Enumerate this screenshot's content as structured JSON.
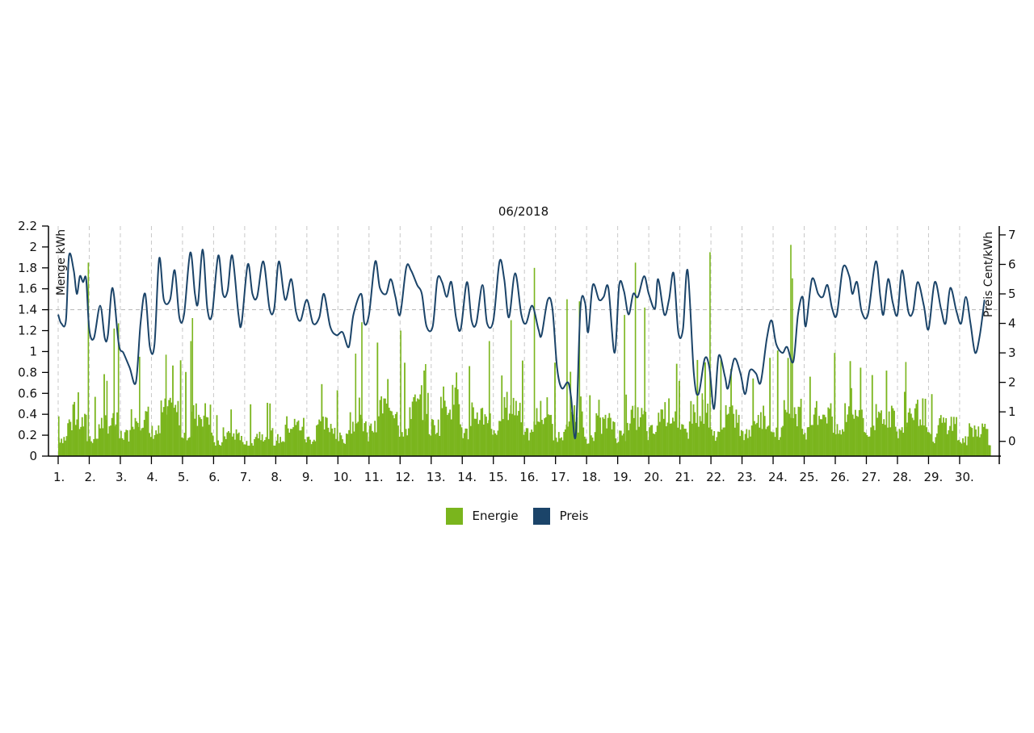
{
  "chart_data": {
    "type": "bar+line",
    "title": "06/2018",
    "y_left_label": "Menge kWh",
    "y_right_label": "Preis Cent/kWh",
    "y_left_ticks": [
      "0",
      "0.2",
      "0.4",
      "0.6",
      "0.8",
      "1",
      "1.2",
      "1.4",
      "1.6",
      "1.8",
      "2",
      "2.2"
    ],
    "y_left_range": [
      0,
      2.2
    ],
    "y_right_ticks": [
      "0",
      "1",
      "2",
      "3",
      "4",
      "5",
      "6",
      "7"
    ],
    "y_right_range": [
      -0.5,
      7.3
    ],
    "reference_line_left": 1.4,
    "x_ticks": [
      "1.",
      "2.",
      "3.",
      "4.",
      "5.",
      "6.",
      "7.",
      "8.",
      "9.",
      "10.",
      "11.",
      "12.",
      "13.",
      "14.",
      "15.",
      "16.",
      "17.",
      "18.",
      "19.",
      "20.",
      "21.",
      "22.",
      "23.",
      "24.",
      "25.",
      "26.",
      "27.",
      "28.",
      "29.",
      "30."
    ],
    "x_range_days": [
      1,
      31
    ],
    "resolution": "hourly",
    "series": [
      {
        "name": "Energie",
        "color": "#7ab51d",
        "kind": "bar",
        "axis": "left",
        "daily_base": [
          0.3,
          0.3,
          0.35,
          0.4,
          0.38,
          0.2,
          0.2,
          0.28,
          0.28,
          0.3,
          0.45,
          0.45,
          0.5,
          0.38,
          0.45,
          0.35,
          0.32,
          0.3,
          0.35,
          0.4,
          0.4,
          0.35,
          0.35,
          0.4,
          0.4,
          0.4,
          0.38,
          0.4,
          0.3,
          0.25
        ],
        "highlights": [
          {
            "day_pos": 1.0,
            "value": 0.38
          },
          {
            "day_pos": 1.95,
            "value": 1.85
          },
          {
            "day_pos": 2.55,
            "value": 0.72
          },
          {
            "day_pos": 2.78,
            "value": 1.22
          },
          {
            "day_pos": 2.92,
            "value": 1.27
          },
          {
            "day_pos": 3.6,
            "value": 0.95
          },
          {
            "day_pos": 4.45,
            "value": 0.97
          },
          {
            "day_pos": 5.25,
            "value": 1.1
          },
          {
            "day_pos": 5.3,
            "value": 1.32
          },
          {
            "day_pos": 10.75,
            "value": 1.28
          },
          {
            "day_pos": 10.55,
            "value": 0.98
          },
          {
            "day_pos": 12.0,
            "value": 1.2
          },
          {
            "day_pos": 12.8,
            "value": 0.88
          },
          {
            "day_pos": 14.85,
            "value": 1.1
          },
          {
            "day_pos": 15.55,
            "value": 1.3
          },
          {
            "day_pos": 16.3,
            "value": 1.8
          },
          {
            "day_pos": 17.35,
            "value": 1.5
          },
          {
            "day_pos": 17.75,
            "value": 1.48
          },
          {
            "day_pos": 19.2,
            "value": 1.35
          },
          {
            "day_pos": 19.55,
            "value": 1.85
          },
          {
            "day_pos": 19.85,
            "value": 1.42
          },
          {
            "day_pos": 21.7,
            "value": 0.6
          },
          {
            "day_pos": 21.95,
            "value": 1.95
          },
          {
            "day_pos": 22.3,
            "value": 0.92
          },
          {
            "day_pos": 24.55,
            "value": 2.02
          },
          {
            "day_pos": 24.6,
            "value": 1.7
          },
          {
            "day_pos": 28.25,
            "value": 0.9
          },
          {
            "day_pos": 26.5,
            "value": 0.65
          }
        ]
      },
      {
        "name": "Preis",
        "color": "#1b4469",
        "kind": "line",
        "axis": "right",
        "points": [
          [
            1.0,
            4.3
          ],
          [
            1.1,
            4.0
          ],
          [
            1.25,
            4.1
          ],
          [
            1.35,
            6.3
          ],
          [
            1.5,
            5.8
          ],
          [
            1.6,
            5.0
          ],
          [
            1.7,
            5.6
          ],
          [
            1.8,
            5.4
          ],
          [
            1.9,
            5.5
          ],
          [
            2.0,
            3.8
          ],
          [
            2.15,
            3.5
          ],
          [
            2.35,
            4.6
          ],
          [
            2.5,
            3.5
          ],
          [
            2.6,
            3.6
          ],
          [
            2.75,
            5.2
          ],
          [
            2.95,
            3.3
          ],
          [
            3.1,
            3.0
          ],
          [
            3.3,
            2.5
          ],
          [
            3.5,
            2.0
          ],
          [
            3.65,
            4.0
          ],
          [
            3.8,
            5.0
          ],
          [
            3.95,
            3.2
          ],
          [
            4.1,
            3.3
          ],
          [
            4.25,
            6.2
          ],
          [
            4.4,
            4.8
          ],
          [
            4.6,
            4.8
          ],
          [
            4.75,
            5.8
          ],
          [
            4.9,
            4.2
          ],
          [
            5.05,
            4.3
          ],
          [
            5.25,
            6.4
          ],
          [
            5.4,
            5.0
          ],
          [
            5.5,
            4.7
          ],
          [
            5.65,
            6.5
          ],
          [
            5.8,
            4.5
          ],
          [
            5.95,
            4.3
          ],
          [
            6.15,
            6.3
          ],
          [
            6.3,
            5.0
          ],
          [
            6.45,
            5.1
          ],
          [
            6.6,
            6.3
          ],
          [
            6.8,
            4.3
          ],
          [
            6.9,
            4.0
          ],
          [
            7.1,
            6.0
          ],
          [
            7.25,
            5.0
          ],
          [
            7.4,
            4.9
          ],
          [
            7.6,
            6.1
          ],
          [
            7.8,
            4.5
          ],
          [
            7.95,
            4.5
          ],
          [
            8.1,
            6.1
          ],
          [
            8.3,
            4.8
          ],
          [
            8.5,
            5.5
          ],
          [
            8.65,
            4.4
          ],
          [
            8.8,
            4.1
          ],
          [
            9.0,
            4.8
          ],
          [
            9.2,
            4.0
          ],
          [
            9.4,
            4.2
          ],
          [
            9.55,
            5.0
          ],
          [
            9.75,
            3.9
          ],
          [
            9.95,
            3.6
          ],
          [
            10.15,
            3.7
          ],
          [
            10.35,
            3.2
          ],
          [
            10.5,
            4.3
          ],
          [
            10.75,
            5.0
          ],
          [
            10.85,
            4.0
          ],
          [
            11.0,
            4.3
          ],
          [
            11.2,
            6.1
          ],
          [
            11.35,
            5.2
          ],
          [
            11.55,
            5.0
          ],
          [
            11.7,
            5.5
          ],
          [
            11.85,
            4.9
          ],
          [
            12.0,
            4.3
          ],
          [
            12.2,
            5.9
          ],
          [
            12.35,
            5.8
          ],
          [
            12.55,
            5.3
          ],
          [
            12.7,
            5.0
          ],
          [
            12.85,
            3.9
          ],
          [
            13.05,
            3.9
          ],
          [
            13.2,
            5.5
          ],
          [
            13.35,
            5.4
          ],
          [
            13.5,
            4.9
          ],
          [
            13.65,
            5.4
          ],
          [
            13.8,
            4.2
          ],
          [
            13.95,
            3.8
          ],
          [
            14.15,
            5.4
          ],
          [
            14.3,
            4.1
          ],
          [
            14.45,
            4.0
          ],
          [
            14.65,
            5.3
          ],
          [
            14.8,
            4.0
          ],
          [
            15.0,
            4.1
          ],
          [
            15.2,
            6.1
          ],
          [
            15.35,
            5.5
          ],
          [
            15.5,
            4.2
          ],
          [
            15.7,
            5.7
          ],
          [
            15.9,
            4.3
          ],
          [
            16.05,
            4.0
          ],
          [
            16.25,
            4.6
          ],
          [
            16.45,
            3.8
          ],
          [
            16.55,
            3.6
          ],
          [
            16.75,
            4.8
          ],
          [
            16.9,
            4.5
          ],
          [
            17.05,
            2.5
          ],
          [
            17.2,
            1.8
          ],
          [
            17.4,
            2.0
          ],
          [
            17.5,
            1.5
          ],
          [
            17.65,
            0.2
          ],
          [
            17.8,
            4.5
          ],
          [
            17.95,
            4.7
          ],
          [
            18.05,
            3.7
          ],
          [
            18.2,
            5.3
          ],
          [
            18.4,
            4.8
          ],
          [
            18.55,
            4.9
          ],
          [
            18.7,
            5.2
          ],
          [
            18.9,
            3.0
          ],
          [
            19.05,
            5.3
          ],
          [
            19.2,
            5.1
          ],
          [
            19.35,
            4.3
          ],
          [
            19.5,
            5.0
          ],
          [
            19.65,
            4.9
          ],
          [
            19.85,
            5.6
          ],
          [
            20.0,
            5.0
          ],
          [
            20.2,
            4.5
          ],
          [
            20.3,
            5.5
          ],
          [
            20.5,
            4.3
          ],
          [
            20.65,
            4.8
          ],
          [
            20.8,
            5.7
          ],
          [
            20.95,
            3.7
          ],
          [
            21.1,
            3.8
          ],
          [
            21.25,
            5.8
          ],
          [
            21.45,
            2.3
          ],
          [
            21.6,
            1.6
          ],
          [
            21.8,
            2.8
          ],
          [
            21.95,
            2.5
          ],
          [
            22.1,
            1.1
          ],
          [
            22.25,
            2.9
          ],
          [
            22.45,
            2.2
          ],
          [
            22.55,
            1.8
          ],
          [
            22.75,
            2.8
          ],
          [
            22.95,
            2.3
          ],
          [
            23.1,
            1.6
          ],
          [
            23.25,
            2.4
          ],
          [
            23.45,
            2.3
          ],
          [
            23.6,
            2.0
          ],
          [
            23.8,
            3.5
          ],
          [
            23.95,
            4.1
          ],
          [
            24.1,
            3.3
          ],
          [
            24.3,
            3.0
          ],
          [
            24.45,
            3.2
          ],
          [
            24.65,
            2.7
          ],
          [
            24.8,
            4.3
          ],
          [
            24.95,
            4.9
          ],
          [
            25.05,
            3.9
          ],
          [
            25.25,
            5.5
          ],
          [
            25.45,
            5.0
          ],
          [
            25.6,
            4.9
          ],
          [
            25.75,
            5.3
          ],
          [
            25.9,
            4.5
          ],
          [
            26.05,
            4.3
          ],
          [
            26.25,
            5.9
          ],
          [
            26.45,
            5.6
          ],
          [
            26.55,
            5.0
          ],
          [
            26.7,
            5.4
          ],
          [
            26.85,
            4.4
          ],
          [
            27.05,
            4.3
          ],
          [
            27.3,
            6.1
          ],
          [
            27.45,
            4.9
          ],
          [
            27.55,
            4.3
          ],
          [
            27.7,
            5.5
          ],
          [
            27.85,
            4.7
          ],
          [
            28.0,
            4.3
          ],
          [
            28.15,
            5.8
          ],
          [
            28.35,
            4.4
          ],
          [
            28.5,
            4.4
          ],
          [
            28.65,
            5.4
          ],
          [
            28.85,
            4.6
          ],
          [
            29.0,
            3.8
          ],
          [
            29.2,
            5.4
          ],
          [
            29.4,
            4.5
          ],
          [
            29.55,
            4.0
          ],
          [
            29.7,
            5.2
          ],
          [
            29.9,
            4.4
          ],
          [
            30.05,
            4.0
          ],
          [
            30.2,
            4.9
          ],
          [
            30.35,
            4.0
          ],
          [
            30.5,
            3.0
          ],
          [
            30.65,
            3.6
          ],
          [
            30.8,
            4.8
          ]
        ]
      }
    ],
    "legend": [
      {
        "label": "Energie",
        "color": "#7ab51d"
      },
      {
        "label": "Preis",
        "color": "#1b4469"
      }
    ],
    "legend_position": "bottom"
  }
}
